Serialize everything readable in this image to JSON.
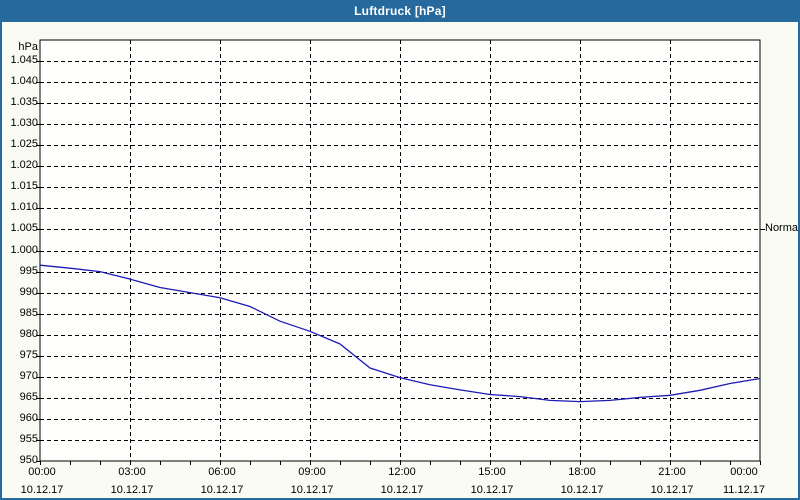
{
  "window": {
    "title": "Luftdruck [hPa]"
  },
  "colors": {
    "titlebar_bg": "#26699d",
    "window_border": "#26699d",
    "page_bg": "#fafcf4",
    "plot_bg": "#fefefc",
    "grid": "#000000",
    "axis": "#000000",
    "text": "#000000",
    "line": "#1c1cb4"
  },
  "chart_data": {
    "type": "line",
    "title": "Luftdruck [hPa]",
    "unit_label": "hPa",
    "xlabel": "",
    "ylabel": "hPa",
    "ylim": [
      950,
      1050
    ],
    "xlim_hours": [
      0,
      24
    ],
    "grid": "dashed",
    "minor_tick_hours": 1,
    "major_tick_hours": 3,
    "x_hours": [
      0,
      1,
      2,
      3,
      4,
      5,
      6,
      7,
      8,
      9,
      10,
      11,
      12,
      13,
      14,
      15,
      16,
      17,
      18,
      19,
      20,
      21,
      22,
      23,
      24
    ],
    "series": [
      {
        "name": "Luftdruck",
        "color": "#1c1cb4",
        "values": [
          996.5,
          995.8,
          995.0,
          993.2,
          991.2,
          990.0,
          988.8,
          986.7,
          983.2,
          980.8,
          977.8,
          972.1,
          969.8,
          968.1,
          966.9,
          965.8,
          965.3,
          964.4,
          964.1,
          964.4,
          965.1,
          965.6,
          966.8,
          968.4,
          969.6
        ]
      }
    ],
    "x_ticks": [
      {
        "hour": 0,
        "time": "00:00",
        "date": "10.12.17"
      },
      {
        "hour": 3,
        "time": "03:00",
        "date": "10.12.17"
      },
      {
        "hour": 6,
        "time": "06:00",
        "date": "10.12.17"
      },
      {
        "hour": 9,
        "time": "09:00",
        "date": "10.12.17"
      },
      {
        "hour": 12,
        "time": "12:00",
        "date": "10.12.17"
      },
      {
        "hour": 15,
        "time": "15:00",
        "date": "10.12.17"
      },
      {
        "hour": 18,
        "time": "18:00",
        "date": "10.12.17"
      },
      {
        "hour": 21,
        "time": "21:00",
        "date": "10.12.17"
      },
      {
        "hour": 24,
        "time": "00:00",
        "date": "11.12.17"
      }
    ],
    "y_ticks": [
      {
        "value": 1045,
        "label": "1.045"
      },
      {
        "value": 1040,
        "label": "1.040"
      },
      {
        "value": 1035,
        "label": "1.035"
      },
      {
        "value": 1030,
        "label": "1.030"
      },
      {
        "value": 1025,
        "label": "1.025"
      },
      {
        "value": 1020,
        "label": "1.020"
      },
      {
        "value": 1015,
        "label": "1.015"
      },
      {
        "value": 1010,
        "label": "1.010"
      },
      {
        "value": 1005,
        "label": "1.005"
      },
      {
        "value": 1000,
        "label": "1.000"
      },
      {
        "value": 995,
        "label": "995"
      },
      {
        "value": 990,
        "label": "990"
      },
      {
        "value": 985,
        "label": "985"
      },
      {
        "value": 980,
        "label": "980"
      },
      {
        "value": 975,
        "label": "975"
      },
      {
        "value": 970,
        "label": "970"
      },
      {
        "value": 965,
        "label": "965"
      },
      {
        "value": 960,
        "label": "960"
      },
      {
        "value": 955,
        "label": "955"
      },
      {
        "value": 950,
        "label": "950"
      }
    ],
    "normal_marker": {
      "label": "Normal",
      "value": 1005
    }
  }
}
